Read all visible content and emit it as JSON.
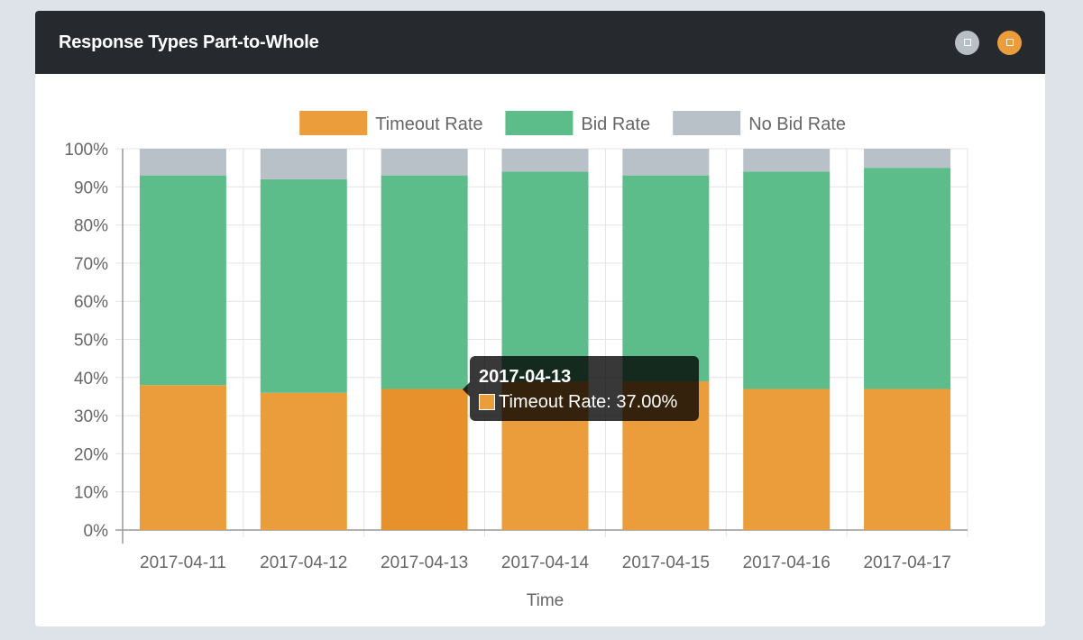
{
  "panel": {
    "title": "Response Types Part-to-Whole",
    "buttons": [
      {
        "name": "grey-square-button",
        "color": "#b8c0c6"
      },
      {
        "name": "orange-square-button",
        "color": "#ea9d3a"
      }
    ]
  },
  "tooltip": {
    "title": "2017-04-13",
    "text": "Timeout Rate: 37.00%",
    "swatch_color": "#ea9d3a"
  },
  "chart_data": {
    "type": "bar",
    "stacked": true,
    "categories": [
      "2017-04-11",
      "2017-04-12",
      "2017-04-13",
      "2017-04-14",
      "2017-04-15",
      "2017-04-16",
      "2017-04-17"
    ],
    "series": [
      {
        "name": "Timeout Rate",
        "color": "#ea9d3a",
        "values": [
          38,
          36,
          37,
          39,
          39,
          37,
          37
        ]
      },
      {
        "name": "Bid Rate",
        "color": "#5cbd8b",
        "values": [
          55,
          56,
          56,
          55,
          54,
          57,
          58
        ]
      },
      {
        "name": "No Bid Rate",
        "color": "#b8c0c8",
        "values": [
          7,
          8,
          7,
          6,
          7,
          6,
          5
        ]
      }
    ],
    "yticks": [
      "0%",
      "10%",
      "20%",
      "30%",
      "40%",
      "50%",
      "60%",
      "70%",
      "80%",
      "90%",
      "100%"
    ],
    "ylim": [
      0,
      100
    ],
    "xlabel": "Time",
    "ylabel": "",
    "grid": true,
    "legend": "top-center",
    "highlighted": {
      "category": "2017-04-13",
      "series": "Timeout Rate",
      "color": "#e6912c"
    }
  }
}
